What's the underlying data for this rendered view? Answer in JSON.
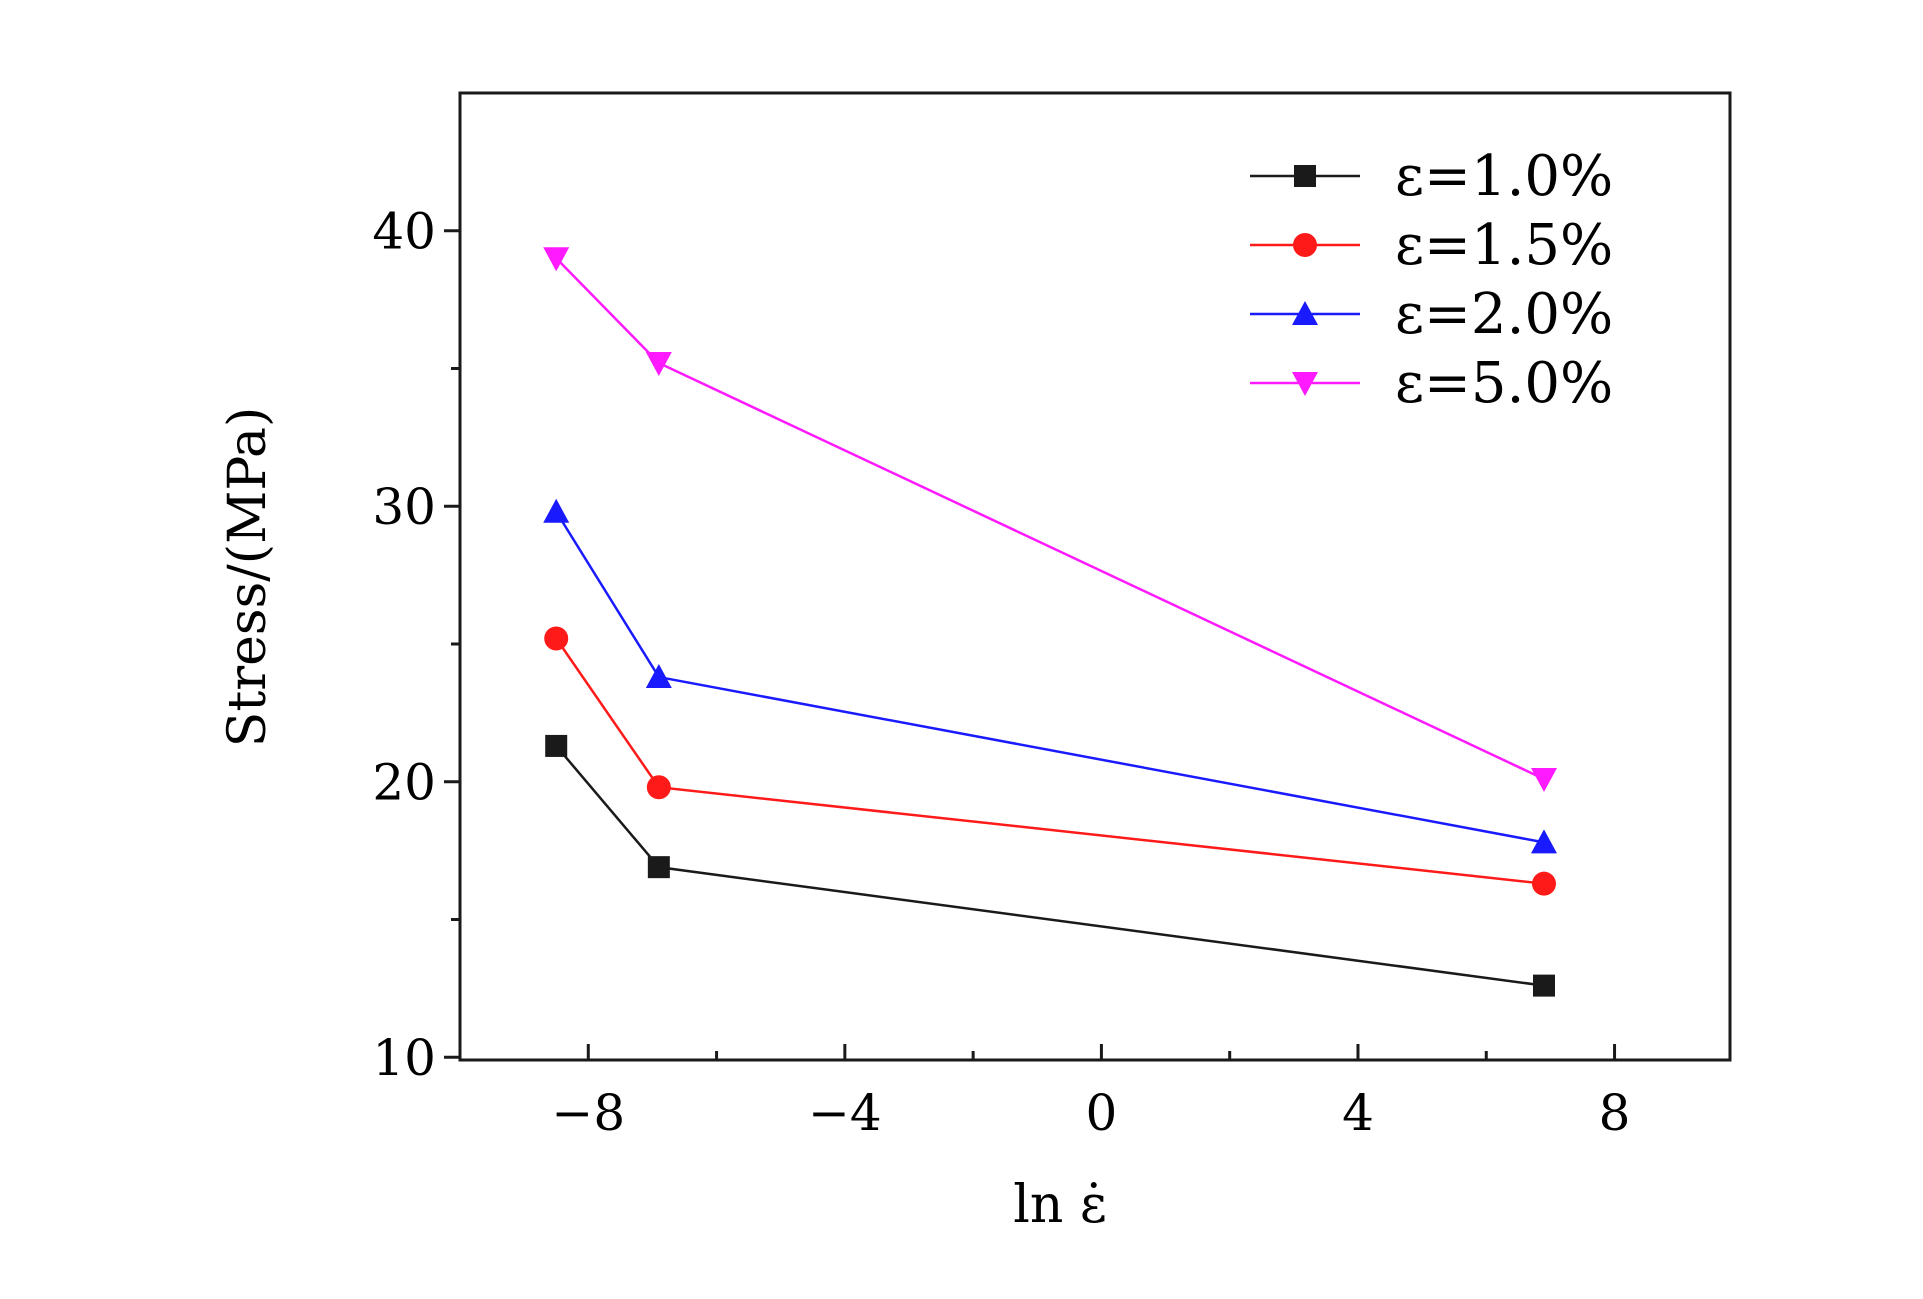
{
  "chart_data": {
    "type": "line",
    "xlabel": "ln ε̇",
    "ylabel": "Stress/(MPa)",
    "xlim": [
      -10,
      9.8
    ],
    "ylim": [
      9.9,
      45
    ],
    "x_ticks": [
      -8,
      -4,
      0,
      4,
      8
    ],
    "x_tick_labels": [
      "−8",
      "−4",
      "0",
      "4",
      "8"
    ],
    "x_minor_ticks": [
      -6,
      -2,
      2,
      6
    ],
    "y_ticks": [
      10,
      20,
      30,
      40
    ],
    "y_tick_labels": [
      "10",
      "20",
      "30",
      "40"
    ],
    "y_minor_ticks": [
      15,
      25,
      35
    ],
    "legend_position": "top-right",
    "grid": false,
    "x": [
      -8.5,
      -6.9,
      6.9
    ],
    "series": [
      {
        "name": "ε=1.0%",
        "color": "#1a1a1a",
        "marker": "square",
        "values": [
          21.3,
          16.9,
          12.6
        ]
      },
      {
        "name": "ε=1.5%",
        "color": "#ff1a1a",
        "marker": "circle",
        "values": [
          25.2,
          19.8,
          16.3
        ]
      },
      {
        "name": "ε=2.0%",
        "color": "#1a1aff",
        "marker": "triangle-up",
        "values": [
          29.8,
          23.8,
          17.8
        ]
      },
      {
        "name": "ε=5.0%",
        "color": "#ff1aff",
        "marker": "triangle-down",
        "values": [
          39.0,
          35.2,
          20.1
        ]
      }
    ]
  }
}
